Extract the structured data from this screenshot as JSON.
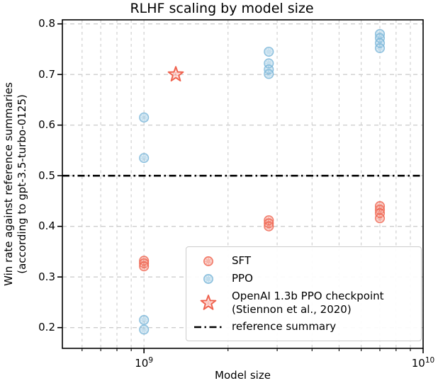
{
  "chart_data": {
    "type": "scatter",
    "title": "RLHF scaling by model size",
    "xlabel": "Model size",
    "ylabel_lines": [
      "Win rate against reference summaries",
      "(according to gpt-3.5-turbo-0125)"
    ],
    "x_scale": "log",
    "x_axis": {
      "min": 510000000,
      "max": 10000000000,
      "major_ticks": [
        1000000000,
        10000000000
      ],
      "major_tick_labels": [
        {
          "base": "10",
          "exp": "9"
        },
        {
          "base": "10",
          "exp": "10"
        }
      ],
      "minor_ticks": [
        600000000,
        700000000,
        800000000,
        900000000,
        2000000000,
        3000000000,
        4000000000,
        5000000000,
        6000000000,
        7000000000,
        8000000000,
        9000000000
      ]
    },
    "y_axis": {
      "min": 0.159,
      "max": 0.808,
      "ticks": [
        0.2,
        0.3,
        0.4,
        0.5,
        0.6,
        0.7,
        0.8
      ],
      "tick_labels": [
        "0.2",
        "0.3",
        "0.4",
        "0.5",
        "0.6",
        "0.7",
        "0.8"
      ]
    },
    "grid": {
      "show": true,
      "color": "#cecece",
      "style": "dashed"
    },
    "series": [
      {
        "name": "SFT",
        "marker": "circle",
        "color": "#f06a56",
        "points": [
          [
            1000000000.0,
            0.332
          ],
          [
            1000000000.0,
            0.327
          ],
          [
            1000000000.0,
            0.321
          ],
          [
            2800000000.0,
            0.412
          ],
          [
            2800000000.0,
            0.406
          ],
          [
            2800000000.0,
            0.4
          ],
          [
            7000000000.0,
            0.44
          ],
          [
            7000000000.0,
            0.433
          ],
          [
            7000000000.0,
            0.426
          ],
          [
            7000000000.0,
            0.416
          ]
        ]
      },
      {
        "name": "PPO",
        "marker": "circle",
        "color": "#7fb9da",
        "points": [
          [
            1000000000.0,
            0.615
          ],
          [
            1000000000.0,
            0.535
          ],
          [
            1000000000.0,
            0.215
          ],
          [
            1000000000.0,
            0.196
          ],
          [
            2800000000.0,
            0.745
          ],
          [
            2800000000.0,
            0.722
          ],
          [
            2800000000.0,
            0.71
          ],
          [
            2800000000.0,
            0.701
          ],
          [
            7000000000.0,
            0.78
          ],
          [
            7000000000.0,
            0.772
          ],
          [
            7000000000.0,
            0.762
          ],
          [
            7000000000.0,
            0.752
          ]
        ]
      },
      {
        "name": "OpenAI 1.3b PPO checkpoint (Stiennon et al., 2020)",
        "marker": "star",
        "color": "#ef5f4b",
        "points": [
          [
            1300000000.0,
            0.7
          ]
        ]
      }
    ],
    "reference_line": {
      "y": 0.5,
      "color": "#000000",
      "style": "dashdot",
      "label": "reference summary"
    },
    "legend": {
      "position": "lower right",
      "items": [
        {
          "label": "SFT"
        },
        {
          "label": "PPO"
        },
        {
          "label": "OpenAI 1.3b PPO checkpoint",
          "label2": "(Stiennon et al., 2020)"
        },
        {
          "label": "reference summary"
        }
      ]
    }
  }
}
